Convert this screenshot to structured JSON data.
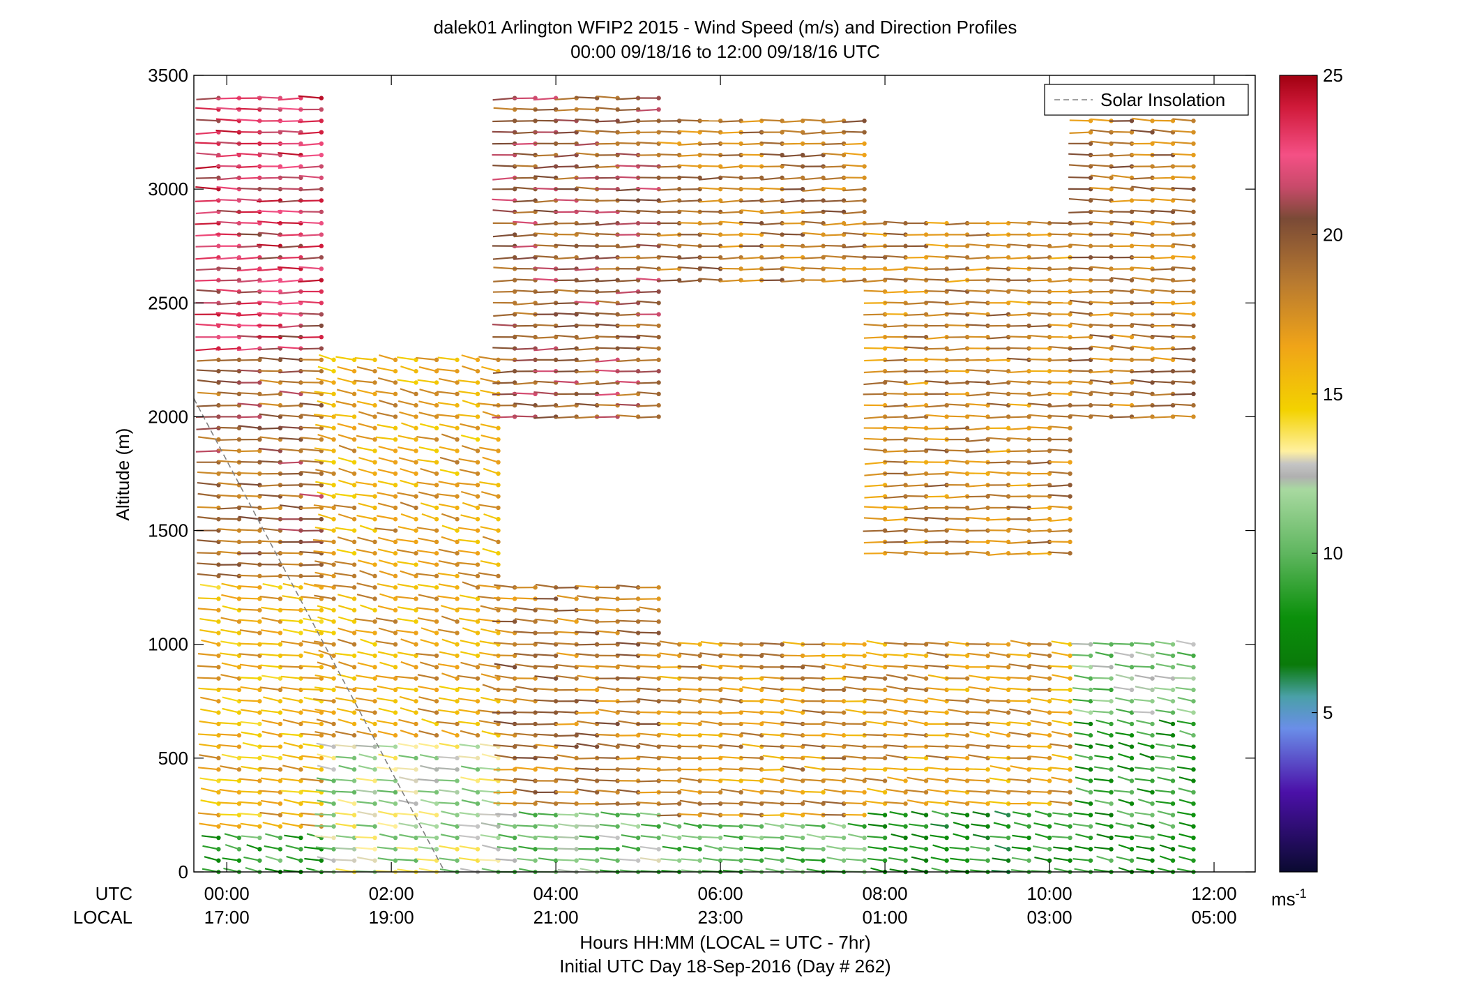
{
  "chart_data": {
    "type": "scatter",
    "title": "dalek01 Arlington WFIP2 2015 - Wind Speed (m/s) and Direction Profiles",
    "subtitle": "00:00 09/18/16 to 12:00 09/18/16  UTC",
    "ylabel": "Altitude (m)",
    "xlabel": "Hours HH:MM  (LOCAL = UTC - 7hr)",
    "xlabel2": "Initial UTC Day 18-Sep-2016 (Day # 262)",
    "xrange_hours": [
      -0.4,
      12.5
    ],
    "ylim": [
      0,
      3500
    ],
    "y_ticks": [
      0,
      500,
      1000,
      1500,
      2000,
      2500,
      3000,
      3500
    ],
    "x_ticks_hours": [
      0,
      2,
      4,
      6,
      8,
      10,
      12
    ],
    "x_row_label_utc": "UTC",
    "x_row_label_local": "LOCAL",
    "x_tick_labels_utc": [
      "00:00",
      "02:00",
      "04:00",
      "06:00",
      "08:00",
      "10:00",
      "12:00"
    ],
    "x_tick_labels_local": [
      "17:00",
      "19:00",
      "21:00",
      "23:00",
      "01:00",
      "03:00",
      "05:00"
    ],
    "legend": {
      "entry": "Solar Insolation",
      "style": "dashed",
      "color": "#808080",
      "placement": "top-right"
    },
    "solar_insolation_line": {
      "hours": [
        -0.4,
        2.65
      ],
      "altitude": [
        2080,
        0
      ]
    },
    "colorbar": {
      "range": [
        0,
        25
      ],
      "ticks": [
        5,
        10,
        15,
        20,
        25
      ],
      "unit_label": "ms",
      "unit_exponent": "-1",
      "stops": [
        {
          "v": 0,
          "c": "#0a0a30"
        },
        {
          "v": 2.5,
          "c": "#4b10a8"
        },
        {
          "v": 4.5,
          "c": "#6a8ee8"
        },
        {
          "v": 5.5,
          "c": "#4aa0a8"
        },
        {
          "v": 6.5,
          "c": "#0a7a0a"
        },
        {
          "v": 8.0,
          "c": "#0b900b"
        },
        {
          "v": 10.0,
          "c": "#5fb65f"
        },
        {
          "v": 12.0,
          "c": "#a8d9a0"
        },
        {
          "v": 12.4,
          "c": "#b0b0b0"
        },
        {
          "v": 12.8,
          "c": "#c4c4c4"
        },
        {
          "v": 13.2,
          "c": "#fff0a0"
        },
        {
          "v": 14.5,
          "c": "#f3d200"
        },
        {
          "v": 16.5,
          "c": "#f0a418"
        },
        {
          "v": 18.5,
          "c": "#b87a30"
        },
        {
          "v": 20.5,
          "c": "#7a4a36"
        },
        {
          "v": 21.5,
          "c": "#c84a6a"
        },
        {
          "v": 22.5,
          "c": "#f45085"
        },
        {
          "v": 24.0,
          "c": "#d01a3a"
        },
        {
          "v": 25.0,
          "c": "#a00010"
        }
      ]
    },
    "profiles": {
      "time_step_hours": 0.25,
      "altitude_step_m": 50,
      "pattern": [
        {
          "t": [
            -0.1,
            1.3
          ],
          "z": [
            0,
            200
          ],
          "speed": 9.0,
          "dir_deg": 240
        },
        {
          "t": [
            -0.1,
            1.3
          ],
          "z": [
            200,
            1300
          ],
          "speed": 16.0,
          "dir_deg": 250
        },
        {
          "t": [
            -0.1,
            1.3
          ],
          "z": [
            1300,
            2300
          ],
          "speed": 19.5,
          "dir_deg": 265
        },
        {
          "t": [
            -0.1,
            1.3
          ],
          "z": [
            2300,
            3450
          ],
          "speed": 22.5,
          "dir_deg": 270
        },
        {
          "t": [
            1.3,
            3.5
          ],
          "z": [
            0,
            600
          ],
          "speed": 12.0,
          "dir_deg": 250
        },
        {
          "t": [
            1.3,
            3.5
          ],
          "z": [
            600,
            2300
          ],
          "speed": 16.5,
          "dir_deg": 240
        },
        {
          "t": [
            3.5,
            5.5
          ],
          "z": [
            0,
            300
          ],
          "speed": 11.0,
          "dir_deg": 255
        },
        {
          "t": [
            3.5,
            5.5
          ],
          "z": [
            300,
            1300
          ],
          "speed": 18.5,
          "dir_deg": 260
        },
        {
          "t": [
            3.5,
            5.5
          ],
          "z": [
            2000,
            3450
          ],
          "speed": 20.0,
          "dir_deg": 270
        },
        {
          "t": [
            5.5,
            8.0
          ],
          "z": [
            0,
            250
          ],
          "speed": 10.0,
          "dir_deg": 250
        },
        {
          "t": [
            5.5,
            8.0
          ],
          "z": [
            250,
            1050
          ],
          "speed": 17.5,
          "dir_deg": 260
        },
        {
          "t": [
            5.5,
            8.0
          ],
          "z": [
            2600,
            3350
          ],
          "speed": 18.5,
          "dir_deg": 270
        },
        {
          "t": [
            8.0,
            10.5
          ],
          "z": [
            0,
            300
          ],
          "speed": 8.0,
          "dir_deg": 245
        },
        {
          "t": [
            8.0,
            10.5
          ],
          "z": [
            300,
            1050
          ],
          "speed": 17.0,
          "dir_deg": 255
        },
        {
          "t": [
            8.0,
            10.5
          ],
          "z": [
            1400,
            2900
          ],
          "speed": 18.0,
          "dir_deg": 270
        },
        {
          "t": [
            10.5,
            12.0
          ],
          "z": [
            0,
            700
          ],
          "speed": 8.5,
          "dir_deg": 240
        },
        {
          "t": [
            10.5,
            12.0
          ],
          "z": [
            700,
            1050
          ],
          "speed": 11.0,
          "dir_deg": 250
        },
        {
          "t": [
            10.5,
            12.0
          ],
          "z": [
            2000,
            3450
          ],
          "speed": 18.5,
          "dir_deg": 265
        }
      ]
    }
  }
}
